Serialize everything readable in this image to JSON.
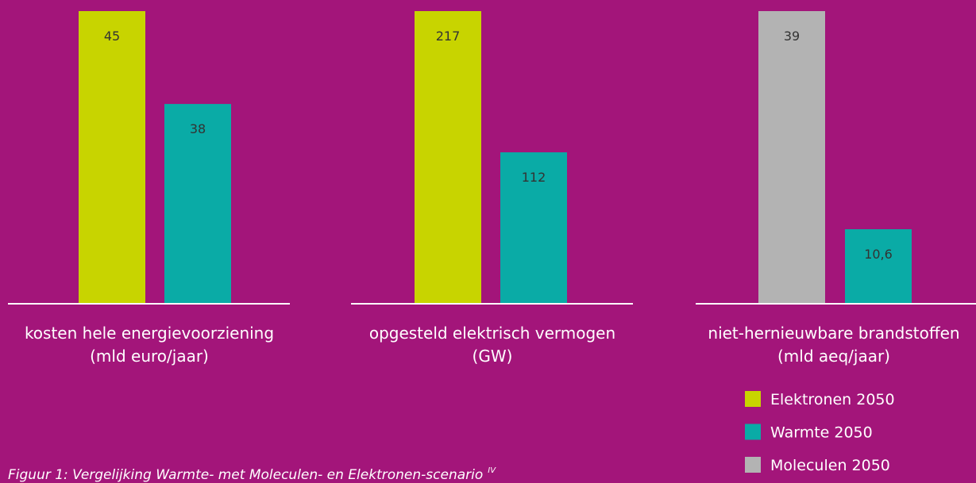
{
  "chart_data": [
    {
      "type": "bar",
      "label": [
        "kosten hele energievoorziening",
        "(mld euro/jaar)"
      ],
      "ylim": [
        23,
        45
      ],
      "series": [
        {
          "name": "Elektronen 2050",
          "color": "#c8d400",
          "values": [
            45
          ]
        },
        {
          "name": "Warmte 2050",
          "color": "#0aaba6",
          "values": [
            38
          ]
        }
      ]
    },
    {
      "type": "bar",
      "label": [
        "opgesteld elektrisch vermogen",
        "(GW)"
      ],
      "ylim": [
        0,
        217
      ],
      "series": [
        {
          "name": "Elektronen 2050",
          "color": "#c8d400",
          "values": [
            217
          ]
        },
        {
          "name": "Warmte 2050",
          "color": "#0aaba6",
          "values": [
            112
          ]
        }
      ]
    },
    {
      "type": "bar",
      "label": [
        "niet-hernieuwbare brandstoffen",
        "(mld aeq/jaar)"
      ],
      "ylim": [
        1,
        39
      ],
      "series": [
        {
          "name": "Moleculen 2050",
          "color": "#b3b3b3",
          "values": [
            39
          ]
        },
        {
          "name": "Warmte 2050",
          "color": "#0aaba6",
          "values": [
            10.6
          ],
          "value_labels": [
            "10,6"
          ]
        }
      ]
    }
  ],
  "caption": "Figuur 1: Vergelijking Warmte- met Moleculen- en Elektronen-scenario",
  "caption_sup": "IV"
}
